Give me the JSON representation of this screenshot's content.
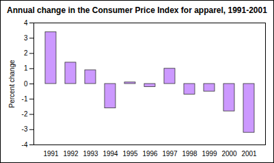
{
  "chart_data": {
    "type": "bar",
    "title": "Annual change in the Consumer Price Index for apparel, 1991-2001",
    "y_label": "Percent change",
    "categories": [
      "1991",
      "1992",
      "1993",
      "1994",
      "1995",
      "1996",
      "1997",
      "1998",
      "1999",
      "2000",
      "2001"
    ],
    "values": [
      3.4,
      1.4,
      0.9,
      -1.6,
      0.1,
      -0.2,
      1.0,
      -0.7,
      -0.5,
      -1.8,
      -3.2
    ],
    "color": "#cc99ff",
    "ylim": [
      -4,
      4
    ],
    "yticks": [
      -4,
      -3,
      -2,
      -1,
      0,
      1,
      2,
      3,
      4
    ],
    "grid": false
  }
}
